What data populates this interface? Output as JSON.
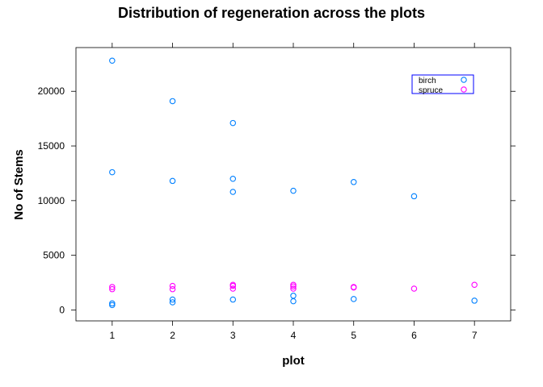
{
  "chart_data": {
    "type": "scatter",
    "title": "Distribution of regeneration across the plots",
    "xlabel": "plot",
    "ylabel": "No of Stems",
    "xlim": [
      0.4,
      7.6
    ],
    "ylim": [
      -1000,
      24000
    ],
    "x_ticks": [
      1,
      2,
      3,
      4,
      5,
      6,
      7
    ],
    "y_ticks": [
      0,
      5000,
      10000,
      15000,
      20000
    ],
    "grid": false,
    "legend_position": "top-right",
    "series": [
      {
        "name": "birch",
        "color": "#0080ff",
        "points": [
          {
            "x": 1,
            "y": 22800
          },
          {
            "x": 1,
            "y": 12600
          },
          {
            "x": 1,
            "y": 600
          },
          {
            "x": 1,
            "y": 450
          },
          {
            "x": 2,
            "y": 19100
          },
          {
            "x": 2,
            "y": 11800
          },
          {
            "x": 2,
            "y": 950
          },
          {
            "x": 2,
            "y": 700
          },
          {
            "x": 3,
            "y": 17100
          },
          {
            "x": 3,
            "y": 12000
          },
          {
            "x": 3,
            "y": 10800
          },
          {
            "x": 3,
            "y": 950
          },
          {
            "x": 4,
            "y": 10900
          },
          {
            "x": 4,
            "y": 1300
          },
          {
            "x": 4,
            "y": 800
          },
          {
            "x": 5,
            "y": 11700
          },
          {
            "x": 5,
            "y": 1000
          },
          {
            "x": 6,
            "y": 10400
          },
          {
            "x": 7,
            "y": 850
          }
        ]
      },
      {
        "name": "spruce",
        "color": "#ff00ff",
        "points": [
          {
            "x": 1,
            "y": 2100
          },
          {
            "x": 1,
            "y": 1900
          },
          {
            "x": 2,
            "y": 2200
          },
          {
            "x": 2,
            "y": 1900
          },
          {
            "x": 3,
            "y": 2300
          },
          {
            "x": 3,
            "y": 2200
          },
          {
            "x": 3,
            "y": 1950
          },
          {
            "x": 4,
            "y": 2300
          },
          {
            "x": 4,
            "y": 2150
          },
          {
            "x": 4,
            "y": 1950
          },
          {
            "x": 5,
            "y": 2100
          },
          {
            "x": 5,
            "y": 2050
          },
          {
            "x": 6,
            "y": 1950
          },
          {
            "x": 7,
            "y": 2300
          }
        ]
      }
    ]
  }
}
